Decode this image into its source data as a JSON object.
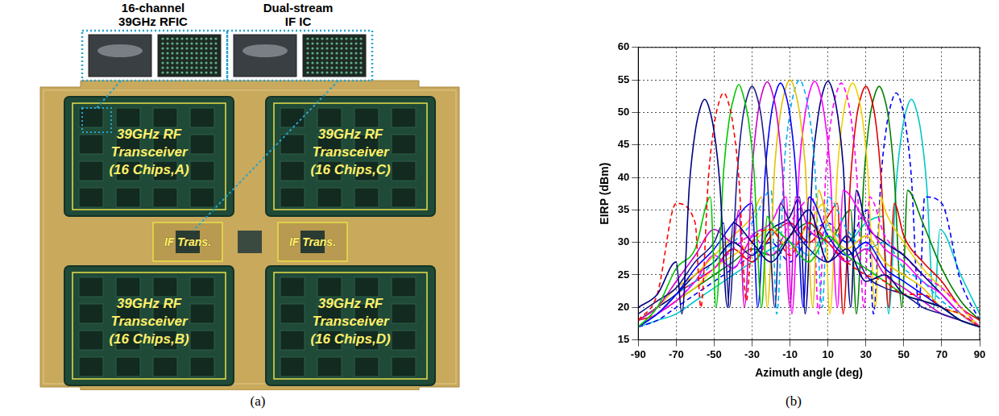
{
  "photo": {
    "caption": "(a)",
    "callouts": [
      {
        "lines": [
          "16-channel",
          "39GHz RFIC"
        ]
      },
      {
        "lines": [
          "Dual-stream",
          "IF IC"
        ]
      }
    ],
    "blocks": [
      {
        "lines": [
          "39GHz RF",
          "Transceiver",
          "(16 Chips,A)"
        ]
      },
      {
        "lines": [
          "39GHz RF",
          "Transceiver",
          "(16 Chips,C)"
        ]
      },
      {
        "lines": [
          "39GHz RF",
          "Transceiver",
          "(16 Chips,B)"
        ]
      },
      {
        "lines": [
          "39GHz RF",
          "Transceiver",
          "(16 Chips,D)"
        ]
      }
    ],
    "if_blocks": [
      "IF Trans.",
      "IF Trans."
    ]
  },
  "chart_data": {
    "caption": "(b)",
    "type": "line",
    "x_label": "Azimuth angle (deg)",
    "y_label": "EIRP (dBm)",
    "xlim": [
      -90,
      90
    ],
    "xticks": [
      -90,
      -70,
      -50,
      -30,
      -10,
      10,
      30,
      50,
      70,
      90
    ],
    "ylim": [
      15,
      60
    ],
    "yticks": [
      15,
      20,
      25,
      30,
      35,
      40,
      45,
      50,
      55,
      60
    ],
    "grid": true,
    "series": [
      {
        "color": "#00007f",
        "line_style": "solid",
        "x": [
          -90,
          -80,
          -70,
          -67,
          -63,
          -60,
          -57,
          -55,
          -53,
          -50,
          -47,
          -43,
          -40,
          -30,
          -20,
          -10,
          0,
          10,
          20,
          30,
          40,
          50,
          60,
          70,
          80,
          90
        ],
        "values": [
          20,
          22,
          27,
          19,
          39,
          47,
          51,
          52,
          51,
          47,
          39,
          20,
          33,
          30,
          27,
          31,
          35,
          27,
          29,
          24,
          25,
          22,
          21,
          20,
          18,
          17
        ]
      },
      {
        "color": "#ff0000",
        "line_style": "dashed",
        "x": [
          -90,
          -80,
          -70,
          -60,
          -57,
          -53,
          -50,
          -47,
          -45,
          -43,
          -40,
          -37,
          -33,
          -30,
          -20,
          -10,
          0,
          10,
          20,
          30,
          40,
          50,
          60,
          70,
          80,
          90
        ],
        "values": [
          18,
          22,
          36,
          33,
          20,
          40,
          48,
          52,
          53,
          52,
          48,
          40,
          21,
          30,
          32,
          28,
          33,
          30,
          27,
          25,
          24,
          22,
          22,
          20,
          19,
          17
        ]
      },
      {
        "color": "#00c800",
        "line_style": "solid",
        "x": [
          -90,
          -80,
          -70,
          -60,
          -52,
          -49,
          -45,
          -42,
          -39,
          -37,
          -35,
          -32,
          -29,
          -25,
          -22,
          -20,
          -10,
          0,
          10,
          20,
          30,
          40,
          50,
          60,
          70,
          80,
          90
        ],
        "values": [
          17,
          20,
          26,
          29,
          37,
          20,
          41,
          49,
          53,
          54.3,
          53,
          49,
          41,
          20,
          34,
          33,
          30,
          27,
          31,
          28,
          26,
          24,
          22,
          21,
          20,
          18,
          17
        ]
      },
      {
        "color": "#1c1c8c",
        "line_style": "solid",
        "x": [
          -90,
          -80,
          -70,
          -60,
          -50,
          -45,
          -42,
          -38,
          -35,
          -32,
          -30,
          -28,
          -25,
          -22,
          -18,
          -15,
          -10,
          0,
          10,
          20,
          30,
          40,
          50,
          60,
          70,
          80,
          90
        ],
        "values": [
          19,
          21,
          23,
          27,
          30,
          33,
          20,
          40,
          49,
          53,
          54,
          53,
          49,
          40,
          20,
          36,
          33,
          29,
          27,
          31,
          25,
          23,
          22,
          20,
          19,
          18,
          17
        ]
      },
      {
        "color": "#cc00cc",
        "line_style": "solid",
        "x": [
          -90,
          -80,
          -70,
          -60,
          -50,
          -40,
          -37,
          -34,
          -30,
          -27,
          -24,
          -22,
          -20,
          -17,
          -14,
          -10,
          -7,
          0,
          10,
          20,
          30,
          40,
          50,
          60,
          70,
          80,
          90
        ],
        "values": [
          18,
          20,
          24,
          28,
          32,
          30,
          35,
          20,
          41,
          49.7,
          53.7,
          54.7,
          53.7,
          49.7,
          41,
          20,
          37,
          32,
          30,
          27,
          29,
          25,
          23,
          21,
          19,
          18,
          17
        ]
      },
      {
        "color": "#0000ff",
        "line_style": "solid",
        "x": [
          -90,
          -80,
          -70,
          -60,
          -50,
          -40,
          -30,
          -27,
          -23,
          -20,
          -17,
          -15,
          -13,
          -10,
          -7,
          -3,
          0,
          10,
          20,
          30,
          40,
          50,
          60,
          70,
          80,
          90
        ],
        "values": [
          17,
          19,
          22,
          26,
          29,
          33,
          36,
          20,
          41,
          49.5,
          53.5,
          54.5,
          53.5,
          49.5,
          41,
          20,
          37,
          31,
          28,
          30,
          26,
          24,
          22,
          20,
          18,
          17
        ]
      },
      {
        "color": "#e6c000",
        "line_style": "solid",
        "x": [
          -90,
          -80,
          -70,
          -60,
          -50,
          -40,
          -30,
          -25,
          -22,
          -18,
          -15,
          -12,
          -10,
          -8,
          -5,
          -2,
          2,
          5,
          10,
          20,
          30,
          40,
          50,
          60,
          70,
          80,
          90
        ],
        "values": [
          18,
          20,
          23,
          25,
          28,
          31,
          34,
          37,
          20,
          42,
          50,
          54,
          55,
          54,
          50,
          42,
          20,
          38,
          33,
          29,
          31,
          27,
          25,
          23,
          20,
          19,
          17
        ]
      },
      {
        "color": "#00b0f0",
        "line_style": "dashed",
        "x": [
          -90,
          -80,
          -70,
          -60,
          -50,
          -40,
          -30,
          -20,
          -17,
          -13,
          -10,
          -7,
          -5,
          -3,
          0,
          3,
          7,
          10,
          20,
          30,
          40,
          50,
          60,
          70,
          80,
          90
        ],
        "values": [
          17,
          19,
          22,
          24,
          27,
          30,
          33,
          38,
          19,
          42,
          50,
          54,
          55,
          54,
          50,
          42,
          20,
          37,
          32,
          29,
          30,
          26,
          24,
          21,
          19,
          17
        ]
      },
      {
        "color": "#ff00ff",
        "line_style": "solid",
        "x": [
          -90,
          -80,
          -70,
          -60,
          -50,
          -40,
          -30,
          -20,
          -12,
          -9,
          -5,
          -2,
          1,
          3,
          5,
          8,
          11,
          15,
          18,
          30,
          40,
          50,
          60,
          70,
          80,
          90
        ],
        "values": [
          17,
          19,
          21,
          24,
          28,
          26,
          31,
          33,
          37,
          19,
          42,
          49.8,
          53.8,
          54.8,
          53.8,
          49.8,
          42,
          20,
          38,
          33,
          29,
          27,
          24,
          22,
          19,
          17
        ]
      },
      {
        "color": "#000080",
        "line_style": "solid",
        "x": [
          -90,
          -80,
          -70,
          -60,
          -50,
          -40,
          -30,
          -20,
          -10,
          -5,
          -2,
          2,
          5,
          8,
          10,
          12,
          15,
          18,
          22,
          25,
          30,
          40,
          50,
          60,
          70,
          80,
          90
        ],
        "values": [
          18,
          20,
          22,
          25,
          27,
          30,
          28,
          32,
          34,
          37,
          19,
          42,
          49.8,
          53.8,
          54.8,
          53.8,
          49.8,
          42,
          20,
          38,
          33,
          30,
          28,
          25,
          22,
          19,
          17
        ]
      },
      {
        "color": "#ff00ff",
        "line_style": "dashed",
        "x": [
          -90,
          -80,
          -70,
          -60,
          -50,
          -40,
          -30,
          -20,
          -10,
          2,
          5,
          9,
          12,
          15,
          17,
          19,
          22,
          25,
          29,
          32,
          40,
          50,
          60,
          70,
          80,
          90
        ],
        "values": [
          17,
          19,
          21,
          24,
          26,
          29,
          31,
          28,
          33,
          37,
          19,
          41,
          49.5,
          53.5,
          54.5,
          53.5,
          49.5,
          41,
          20,
          37,
          31,
          28,
          25,
          23,
          20,
          17
        ]
      },
      {
        "color": "#f0d000",
        "line_style": "solid",
        "x": [
          -90,
          -80,
          -70,
          -60,
          -50,
          -40,
          -30,
          -20,
          -10,
          0,
          8,
          11,
          15,
          18,
          21,
          23,
          25,
          28,
          31,
          35,
          38,
          40,
          50,
          60,
          70,
          80,
          90
        ],
        "values": [
          17,
          19,
          21,
          23,
          26,
          28,
          30,
          32,
          29,
          33,
          36,
          19,
          41,
          49.5,
          53.5,
          54.5,
          53.5,
          49.5,
          41,
          20,
          37,
          35,
          30,
          26,
          23,
          20,
          17
        ]
      },
      {
        "color": "#e00000",
        "line_style": "solid",
        "x": [
          -90,
          -80,
          -70,
          -60,
          -50,
          -40,
          -30,
          -20,
          -10,
          0,
          10,
          15,
          18,
          22,
          25,
          28,
          30,
          32,
          35,
          38,
          42,
          45,
          50,
          60,
          70,
          80,
          90
        ],
        "values": [
          18,
          19,
          22,
          24,
          26,
          29,
          27,
          31,
          33,
          30,
          34,
          36,
          19,
          40,
          49,
          53,
          54,
          53,
          49,
          40,
          20,
          36,
          31,
          27,
          24,
          20,
          18
        ]
      },
      {
        "color": "#008000",
        "line_style": "solid",
        "x": [
          -90,
          -80,
          -70,
          -60,
          -50,
          -40,
          -30,
          -20,
          -10,
          0,
          10,
          22,
          25,
          29,
          32,
          35,
          37,
          39,
          42,
          45,
          49,
          52,
          60,
          70,
          80,
          90
        ],
        "values": [
          17,
          19,
          21,
          23,
          25,
          27,
          29,
          28,
          31,
          33,
          30,
          35,
          19,
          40,
          49,
          53,
          54,
          53,
          49,
          40,
          20,
          38,
          33,
          26,
          21,
          18
        ]
      },
      {
        "color": "#0000ff",
        "line_style": "dashed",
        "x": [
          -90,
          -80,
          -70,
          -60,
          -50,
          -40,
          -30,
          -20,
          -10,
          0,
          10,
          20,
          31,
          34,
          38,
          41,
          44,
          46,
          48,
          51,
          54,
          58,
          61,
          70,
          80,
          90
        ],
        "values": [
          17,
          18,
          20,
          22,
          24,
          26,
          28,
          30,
          27,
          31,
          33,
          30,
          35,
          19,
          40,
          48,
          52,
          53,
          52,
          48,
          40,
          20,
          37,
          36,
          24,
          18
        ]
      },
      {
        "color": "#00c8c8",
        "line_style": "solid",
        "x": [
          -90,
          -80,
          -70,
          -60,
          -50,
          -40,
          -30,
          -20,
          -10,
          0,
          10,
          20,
          30,
          39,
          42,
          46,
          49,
          52,
          54,
          56,
          59,
          62,
          66,
          69,
          80,
          90
        ],
        "values": [
          17,
          18,
          19,
          21,
          23,
          25,
          27,
          29,
          30,
          28,
          32,
          30,
          33,
          34,
          19,
          39,
          47,
          51,
          52,
          51,
          47,
          39,
          20,
          32,
          25,
          19
        ]
      }
    ]
  }
}
